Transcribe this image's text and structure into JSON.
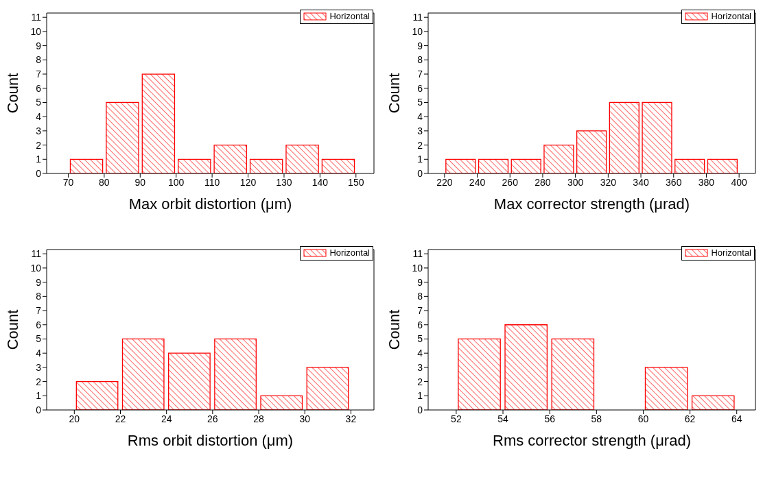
{
  "chart_data": [
    {
      "type": "histogram",
      "xlabel": "Max orbit distortion (μm)",
      "ylabel": "Count",
      "bins": [
        70,
        80,
        90,
        100,
        110,
        120,
        130,
        140,
        150
      ],
      "series": [
        {
          "name": "Horizontal",
          "color": "#ff0000",
          "values": [
            1,
            5,
            7,
            1,
            2,
            1,
            2,
            1
          ]
        }
      ],
      "xlim": [
        64,
        155
      ],
      "xticks": [
        70,
        80,
        90,
        100,
        110,
        120,
        130,
        140,
        150
      ],
      "ylim": [
        0,
        11.3
      ],
      "yticks": [
        0,
        1,
        2,
        3,
        4,
        5,
        6,
        7,
        8,
        9,
        10,
        11
      ],
      "legend": "top right"
    },
    {
      "type": "histogram",
      "xlabel": "Max corrector strength (μrad)",
      "ylabel": "Count",
      "bins": [
        220,
        240,
        260,
        280,
        300,
        320,
        340,
        360,
        380,
        400
      ],
      "series": [
        {
          "name": "Horizontal",
          "color": "#ff0000",
          "values": [
            1,
            1,
            1,
            2,
            3,
            5,
            5,
            1,
            1
          ]
        }
      ],
      "xlim": [
        210,
        410
      ],
      "xticks": [
        220,
        240,
        260,
        280,
        300,
        320,
        340,
        360,
        380,
        400
      ],
      "ylim": [
        0,
        11.3
      ],
      "yticks": [
        0,
        1,
        2,
        3,
        4,
        5,
        6,
        7,
        8,
        9,
        10,
        11
      ],
      "legend": "top right"
    },
    {
      "type": "histogram",
      "xlabel": "Rms orbit distortion (μm)",
      "ylabel": "Count",
      "bins": [
        20,
        22,
        24,
        26,
        28,
        30,
        32
      ],
      "series": [
        {
          "name": "Horizontal",
          "color": "#ff0000",
          "values": [
            2,
            5,
            4,
            5,
            1,
            3
          ]
        }
      ],
      "xlim": [
        18.8,
        33
      ],
      "xticks": [
        20,
        22,
        24,
        26,
        28,
        30,
        32
      ],
      "ylim": [
        0,
        11.3
      ],
      "yticks": [
        0,
        1,
        2,
        3,
        4,
        5,
        6,
        7,
        8,
        9,
        10,
        11
      ],
      "legend": "top right"
    },
    {
      "type": "histogram",
      "xlabel": "Rms corrector strength (μrad)",
      "ylabel": "Count",
      "bins": [
        52,
        54,
        56,
        58,
        60,
        62,
        64
      ],
      "series": [
        {
          "name": "Horizontal",
          "color": "#ff0000",
          "values": [
            5,
            6,
            5,
            0,
            3,
            1
          ]
        }
      ],
      "xlim": [
        50.8,
        64.8
      ],
      "xticks": [
        52,
        54,
        56,
        58,
        60,
        62,
        64
      ],
      "ylim": [
        0,
        11.3
      ],
      "yticks": [
        0,
        1,
        2,
        3,
        4,
        5,
        6,
        7,
        8,
        9,
        10,
        11
      ],
      "legend": "top right"
    }
  ]
}
